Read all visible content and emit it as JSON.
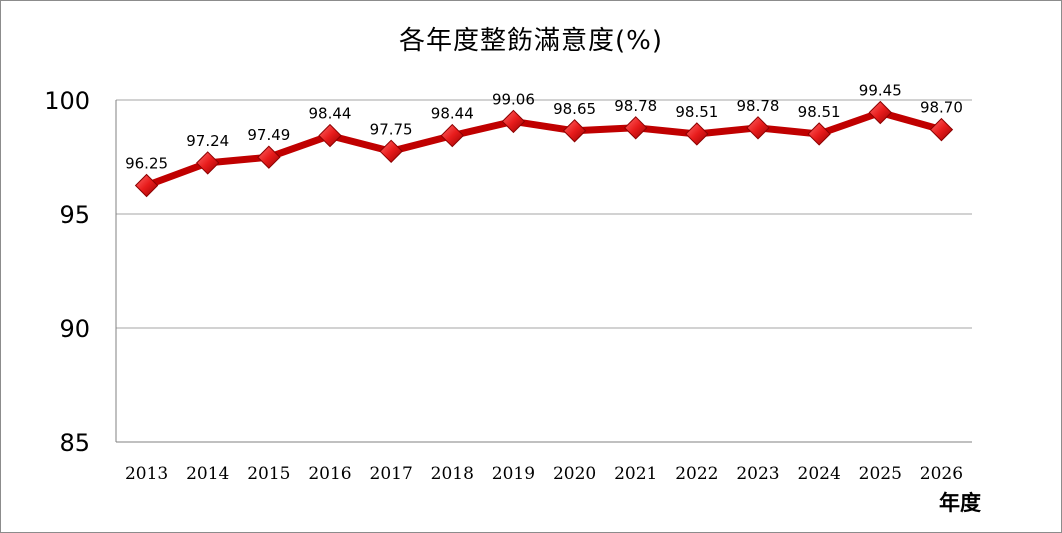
{
  "chart_data": {
    "type": "line",
    "title": "各年度整飭滿意度(%)",
    "xlabel": "年度",
    "ylabel": "",
    "categories": [
      "2013",
      "2014",
      "2015",
      "2016",
      "2017",
      "2018",
      "2019",
      "2020",
      "2021",
      "2022",
      "2023",
      "2024",
      "2025",
      "2026"
    ],
    "series": [
      {
        "values": [
          96.25,
          97.24,
          97.49,
          98.44,
          97.75,
          98.44,
          99.06,
          98.65,
          98.78,
          98.51,
          98.78,
          98.51,
          99.45,
          98.7
        ],
        "data_labels": [
          "96.25",
          "97.24",
          "97.49",
          "98.44",
          "97.75",
          "98.44",
          "99.06",
          "98.65",
          "98.78",
          "98.51",
          "98.78",
          "98.51",
          "99.45",
          "98.70"
        ]
      }
    ],
    "ylim": [
      85,
      100
    ],
    "yticks": [
      85,
      90,
      95,
      100
    ],
    "ytick_labels": [
      "85",
      "90",
      "95",
      "100"
    ],
    "grid": true,
    "legend": "none",
    "colors": {
      "line": "#c00000",
      "marker": "#e81c1c",
      "grid": "#a6a6a6"
    }
  }
}
